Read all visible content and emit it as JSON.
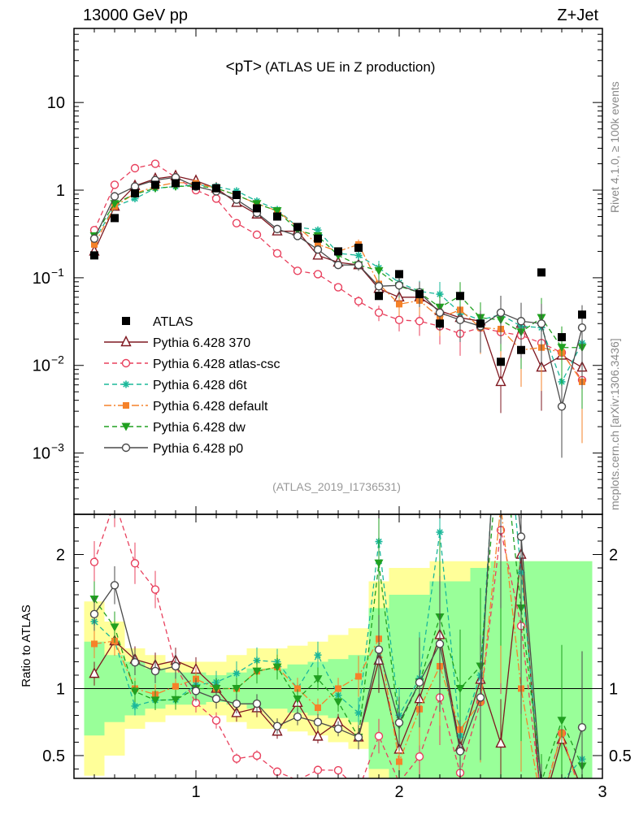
{
  "header": {
    "left": "13000 GeV pp",
    "right": "Z+Jet",
    "side_top": "Rivet 4.1.0, ≥ 100k events",
    "side_bottom": "mcplots.cern.ch [arXiv:1306.3436]"
  },
  "chart_data": {
    "type": "line",
    "title_main": "<pT>",
    "title_sub": "(ATLAS UE in Z production)",
    "analysis_id": "(ATLAS_2019_I1736531)",
    "x_range": [
      0.4,
      3.0
    ],
    "y_range_main": [
      0.0002,
      70
    ],
    "y_scale_main": "log",
    "y_range_ratio": [
      0.33,
      2.3
    ],
    "ratio_ylabel": "Ratio to ATLAS",
    "x_ticks": [
      {
        "v": 1,
        "label": "1"
      },
      {
        "v": 2,
        "label": "2"
      },
      {
        "v": 3,
        "label": "3"
      }
    ],
    "y_ticks_main": [
      {
        "v": 10,
        "mant": "10",
        "exp": ""
      },
      {
        "v": 1,
        "mant": "1",
        "exp": ""
      },
      {
        "v": 0.1,
        "mant": "10",
        "exp": "−1"
      },
      {
        "v": 0.01,
        "mant": "10",
        "exp": "−2"
      },
      {
        "v": 0.001,
        "mant": "10",
        "exp": "−3"
      }
    ],
    "y_ticks_ratio": [
      {
        "v": 0.5,
        "label": "0.5"
      },
      {
        "v": 1,
        "label": "1"
      },
      {
        "v": 2,
        "label": "2"
      }
    ],
    "x": [
      0.5,
      0.6,
      0.7,
      0.8,
      0.9,
      1.0,
      1.1,
      1.2,
      1.3,
      1.4,
      1.5,
      1.6,
      1.7,
      1.8,
      1.9,
      2.0,
      2.1,
      2.2,
      2.3,
      2.4,
      2.5,
      2.6,
      2.7,
      2.8,
      2.9
    ],
    "data": {
      "name": "ATLAS",
      "values": [
        0.18,
        0.48,
        0.92,
        1.15,
        1.2,
        1.12,
        1.05,
        0.88,
        0.62,
        0.5,
        0.38,
        0.28,
        0.2,
        0.22,
        0.062,
        0.11,
        0.065,
        0.03,
        0.062,
        0.03,
        0.011,
        0.015,
        0.115,
        0.021,
        0.038
      ],
      "band_inner": [
        0.35,
        0.25,
        0.2,
        0.15,
        0.12,
        0.12,
        0.1,
        0.12,
        0.15,
        0.15,
        0.18,
        0.2,
        0.22,
        0.25,
        0.6,
        0.7,
        0.7,
        0.8,
        0.8,
        0.9,
        0.95,
        0.95,
        0.95,
        0.95,
        0.95
      ],
      "band_outer": [
        0.65,
        0.5,
        0.3,
        0.25,
        0.2,
        0.2,
        0.2,
        0.25,
        0.3,
        0.3,
        0.32,
        0.35,
        0.4,
        0.45,
        0.8,
        0.9,
        0.9,
        0.95,
        0.95,
        0.95,
        0.95,
        0.95,
        0.95,
        0.95,
        0.95
      ]
    },
    "series": [
      {
        "name": "Pythia 6.428 370",
        "color": "#7f1820",
        "dash": "",
        "marker": "triangle-open",
        "values": [
          0.2,
          0.65,
          1.12,
          1.35,
          1.45,
          1.28,
          1.05,
          0.72,
          0.53,
          0.34,
          0.34,
          0.18,
          0.15,
          0.14,
          0.075,
          0.06,
          0.06,
          0.042,
          0.035,
          0.032,
          0.0065,
          0.03,
          0.0095,
          0.013,
          0.0095
        ]
      },
      {
        "name": "Pythia 6.428 atlas-csc",
        "color": "#e8405d",
        "dash": "6,4",
        "marker": "circle-open",
        "values": [
          0.35,
          1.15,
          1.78,
          2.0,
          1.4,
          1.0,
          0.8,
          0.42,
          0.31,
          0.19,
          0.12,
          0.11,
          0.078,
          0.054,
          0.04,
          0.033,
          0.032,
          0.028,
          0.023,
          0.027,
          0.024,
          0.022,
          0.018,
          0.014,
          0.0068
        ]
      },
      {
        "name": "Pythia 6.428 d6t",
        "color": "#1bb89a",
        "dash": "6,4",
        "marker": "star",
        "values": [
          0.27,
          0.65,
          0.8,
          1.05,
          1.1,
          1.15,
          1.1,
          0.98,
          0.75,
          0.6,
          0.38,
          0.35,
          0.19,
          0.18,
          0.13,
          0.088,
          0.07,
          0.065,
          0.04,
          0.033,
          0.038,
          0.028,
          0.027,
          0.0065,
          0.018
        ]
      },
      {
        "name": "Pythia 6.428 default",
        "color": "#f5822a",
        "dash": "9,3,2,3",
        "marker": "square",
        "values": [
          0.24,
          0.65,
          0.92,
          1.1,
          1.22,
          1.2,
          1.05,
          0.88,
          0.7,
          0.58,
          0.38,
          0.24,
          0.2,
          0.24,
          0.085,
          0.05,
          0.055,
          0.035,
          0.043,
          0.027,
          0.026,
          0.015,
          0.016,
          0.014,
          0.0065
        ]
      },
      {
        "name": "Pythia 6.428 dw",
        "color": "#20a020",
        "dash": "6,4",
        "marker": "triangle-down",
        "values": [
          0.3,
          0.7,
          0.9,
          1.05,
          1.1,
          1.12,
          1.05,
          0.88,
          0.7,
          0.58,
          0.35,
          0.3,
          0.18,
          0.14,
          0.12,
          0.08,
          0.068,
          0.046,
          0.062,
          0.035,
          0.033,
          0.024,
          0.035,
          0.016,
          0.016
        ]
      },
      {
        "name": "Pythia 6.428 p0",
        "color": "#4a4a4a",
        "dash": "",
        "marker": "circle-open",
        "values": [
          0.28,
          0.85,
          1.1,
          1.3,
          1.4,
          1.1,
          0.97,
          0.78,
          0.55,
          0.36,
          0.3,
          0.21,
          0.14,
          0.14,
          0.08,
          0.082,
          0.068,
          0.04,
          0.033,
          0.028,
          0.04,
          0.032,
          0.03,
          0.0034,
          0.027
        ]
      }
    ]
  }
}
